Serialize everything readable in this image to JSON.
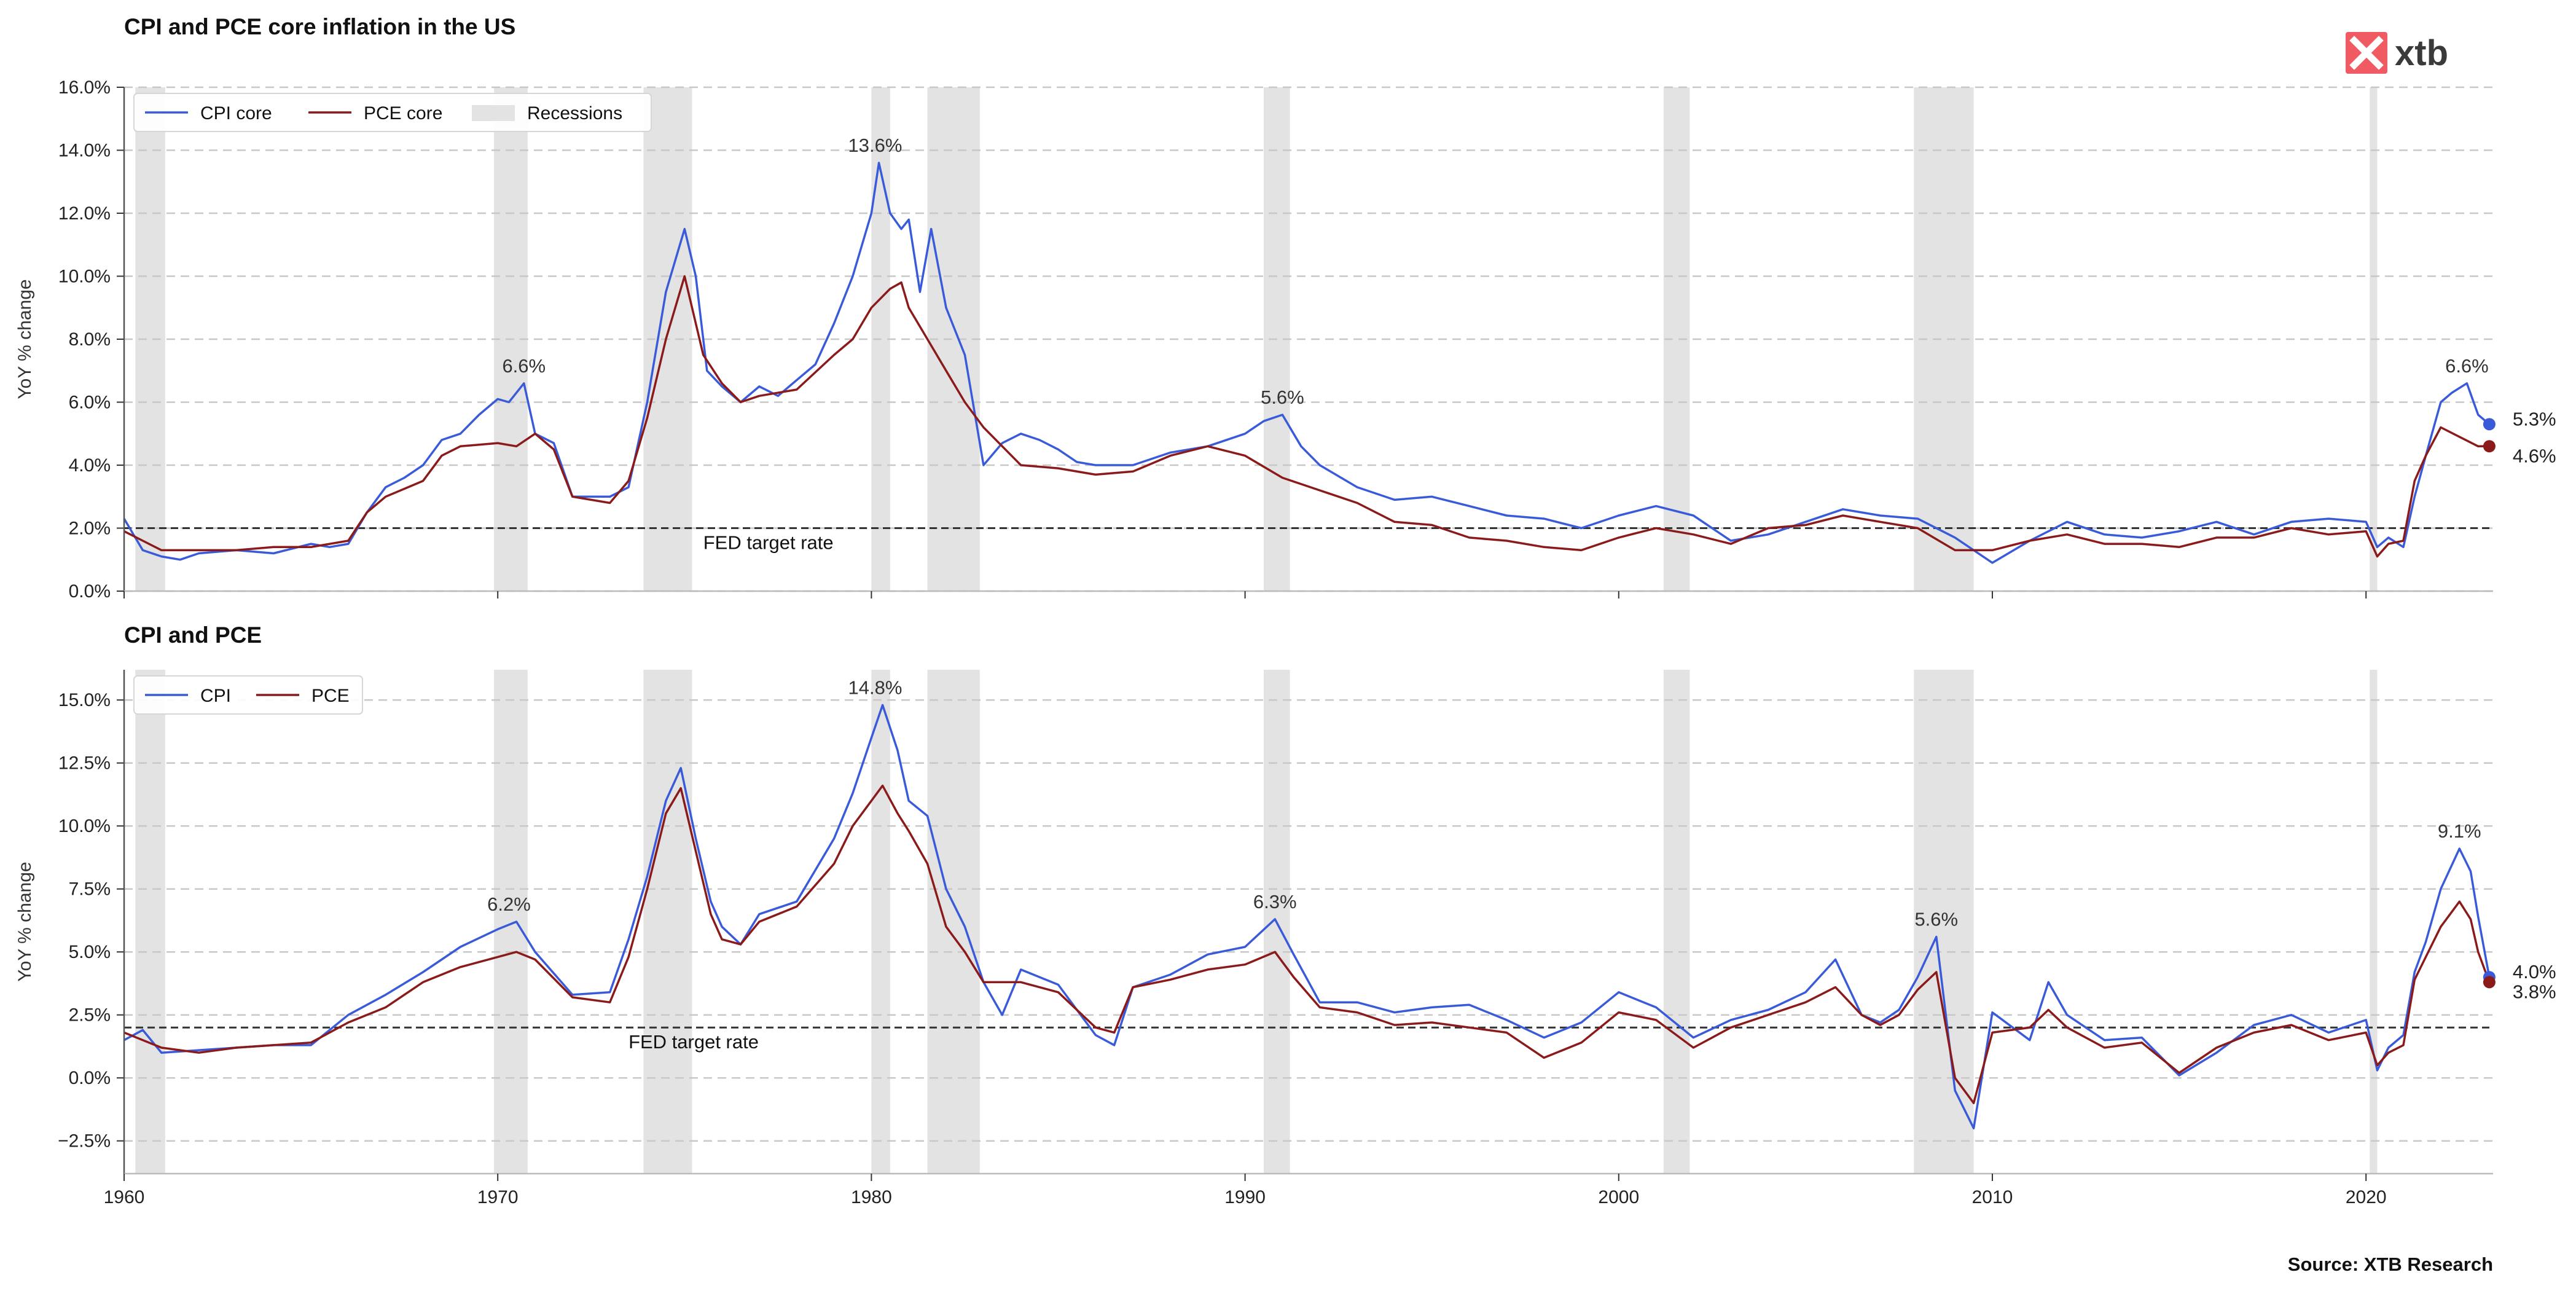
{
  "logo": {
    "text": "xtb",
    "color": "#f05a62"
  },
  "source": "Source: XTB Research",
  "colors": {
    "cpi": "#3a5bd9",
    "pce": "#8b1a1a",
    "recession": "#e3e3e3",
    "target": "#333333",
    "grid": "#c8c8c8"
  },
  "x_axis": {
    "min": 1960,
    "max": 2023.4,
    "ticks": [
      1960,
      1970,
      1980,
      1990,
      2000,
      2010,
      2020
    ]
  },
  "recessions": [
    [
      1960.3,
      1961.1
    ],
    [
      1969.9,
      1970.8
    ],
    [
      1973.9,
      1975.2
    ],
    [
      1980.0,
      1980.5
    ],
    [
      1981.5,
      1982.9
    ],
    [
      1990.5,
      1991.2
    ],
    [
      2001.2,
      2001.9
    ],
    [
      2007.9,
      2009.5
    ],
    [
      2020.1,
      2020.3
    ]
  ],
  "chart_data": [
    {
      "type": "line",
      "title": "CPI and PCE core inflation in the US",
      "ylabel": "YoY % change",
      "ylim": [
        0,
        16
      ],
      "y_ticks": [
        "0.0%",
        "2.0%",
        "4.0%",
        "6.0%",
        "8.0%",
        "10.0%",
        "12.0%",
        "14.0%",
        "16.0%"
      ],
      "y_tick_values": [
        0,
        2,
        4,
        6,
        8,
        10,
        12,
        14,
        16
      ],
      "grid": "horizontal dashed",
      "legend": {
        "position": "top-left",
        "items": [
          "CPI core",
          "PCE core",
          "Recessions"
        ]
      },
      "target": {
        "value": 2.0,
        "label": "FED target rate",
        "label_x": 1975.5
      },
      "annotations": [
        {
          "x": 1970.7,
          "y": 6.6,
          "text": "6.6%"
        },
        {
          "x": 1980.1,
          "y": 13.6,
          "text": "13.6%"
        },
        {
          "x": 1991.0,
          "y": 5.6,
          "text": "5.6%"
        },
        {
          "x": 2022.7,
          "y": 6.6,
          "text": "6.6%"
        }
      ],
      "end_labels": [
        {
          "series": "CPI core",
          "value": 5.3,
          "text": "5.3%"
        },
        {
          "series": "PCE core",
          "value": 4.6,
          "text": "4.6%"
        }
      ],
      "series": [
        {
          "name": "CPI core",
          "color": "#3a5bd9",
          "x": [
            1960.0,
            1960.5,
            1961.0,
            1961.5,
            1962.0,
            1963.0,
            1964.0,
            1965.0,
            1965.5,
            1966.0,
            1966.5,
            1967.0,
            1967.5,
            1968.0,
            1968.5,
            1969.0,
            1969.5,
            1970.0,
            1970.3,
            1970.7,
            1971.0,
            1971.5,
            1972.0,
            1972.5,
            1973.0,
            1973.5,
            1974.0,
            1974.5,
            1975.0,
            1975.3,
            1975.6,
            1976.0,
            1976.5,
            1977.0,
            1977.5,
            1978.0,
            1978.5,
            1979.0,
            1979.5,
            1980.0,
            1980.2,
            1980.5,
            1980.8,
            1981.0,
            1981.3,
            1981.6,
            1982.0,
            1982.5,
            1983.0,
            1983.5,
            1984.0,
            1984.5,
            1985.0,
            1985.5,
            1986.0,
            1987.0,
            1988.0,
            1989.0,
            1990.0,
            1990.5,
            1991.0,
            1991.5,
            1992.0,
            1993.0,
            1994.0,
            1995.0,
            1996.0,
            1997.0,
            1998.0,
            1999.0,
            2000.0,
            2001.0,
            2002.0,
            2003.0,
            2004.0,
            2005.0,
            2006.0,
            2007.0,
            2008.0,
            2009.0,
            2010.0,
            2011.0,
            2012.0,
            2013.0,
            2014.0,
            2015.0,
            2016.0,
            2017.0,
            2018.0,
            2019.0,
            2020.0,
            2020.3,
            2020.6,
            2021.0,
            2021.3,
            2021.6,
            2022.0,
            2022.3,
            2022.7,
            2023.0,
            2023.3
          ],
          "values": [
            2.3,
            1.3,
            1.1,
            1.0,
            1.2,
            1.3,
            1.2,
            1.5,
            1.4,
            1.5,
            2.5,
            3.3,
            3.6,
            4.0,
            4.8,
            5.0,
            5.6,
            6.1,
            6.0,
            6.6,
            5.0,
            4.7,
            3.0,
            3.0,
            3.0,
            3.3,
            6.0,
            9.5,
            11.5,
            10.0,
            7.0,
            6.5,
            6.0,
            6.5,
            6.2,
            6.7,
            7.2,
            8.5,
            10.0,
            12.0,
            13.6,
            12.0,
            11.5,
            11.8,
            9.5,
            11.5,
            9.0,
            7.5,
            4.0,
            4.7,
            5.0,
            4.8,
            4.5,
            4.1,
            4.0,
            4.0,
            4.4,
            4.6,
            5.0,
            5.4,
            5.6,
            4.6,
            4.0,
            3.3,
            2.9,
            3.0,
            2.7,
            2.4,
            2.3,
            2.0,
            2.4,
            2.7,
            2.4,
            1.6,
            1.8,
            2.2,
            2.6,
            2.4,
            2.3,
            1.7,
            0.9,
            1.6,
            2.2,
            1.8,
            1.7,
            1.9,
            2.2,
            1.8,
            2.2,
            2.3,
            2.2,
            1.4,
            1.7,
            1.4,
            3.0,
            4.3,
            6.0,
            6.3,
            6.6,
            5.6,
            5.3
          ]
        },
        {
          "name": "PCE core",
          "color": "#8b1a1a",
          "x": [
            1960.0,
            1960.5,
            1961.0,
            1962.0,
            1963.0,
            1964.0,
            1965.0,
            1966.0,
            1966.5,
            1967.0,
            1968.0,
            1968.5,
            1969.0,
            1970.0,
            1970.5,
            1971.0,
            1971.5,
            1972.0,
            1972.5,
            1973.0,
            1973.5,
            1974.0,
            1974.5,
            1975.0,
            1975.5,
            1976.0,
            1976.5,
            1977.0,
            1978.0,
            1979.0,
            1979.5,
            1980.0,
            1980.5,
            1980.8,
            1981.0,
            1981.5,
            1982.0,
            1982.5,
            1983.0,
            1984.0,
            1985.0,
            1986.0,
            1987.0,
            1988.0,
            1989.0,
            1990.0,
            1991.0,
            1992.0,
            1993.0,
            1994.0,
            1995.0,
            1996.0,
            1997.0,
            1998.0,
            1999.0,
            2000.0,
            2001.0,
            2002.0,
            2003.0,
            2004.0,
            2005.0,
            2006.0,
            2007.0,
            2008.0,
            2009.0,
            2010.0,
            2011.0,
            2012.0,
            2013.0,
            2014.0,
            2015.0,
            2016.0,
            2017.0,
            2018.0,
            2019.0,
            2020.0,
            2020.3,
            2020.6,
            2021.0,
            2021.3,
            2021.6,
            2022.0,
            2022.5,
            2023.0,
            2023.3
          ],
          "values": [
            1.9,
            1.6,
            1.3,
            1.3,
            1.3,
            1.4,
            1.4,
            1.6,
            2.5,
            3.0,
            3.5,
            4.3,
            4.6,
            4.7,
            4.6,
            5.0,
            4.5,
            3.0,
            2.9,
            2.8,
            3.5,
            5.5,
            8.0,
            10.0,
            7.5,
            6.6,
            6.0,
            6.2,
            6.4,
            7.5,
            8.0,
            9.0,
            9.6,
            9.8,
            9.0,
            8.0,
            7.0,
            6.0,
            5.2,
            4.0,
            3.9,
            3.7,
            3.8,
            4.3,
            4.6,
            4.3,
            3.6,
            3.2,
            2.8,
            2.2,
            2.1,
            1.7,
            1.6,
            1.4,
            1.3,
            1.7,
            2.0,
            1.8,
            1.5,
            2.0,
            2.1,
            2.4,
            2.2,
            2.0,
            1.3,
            1.3,
            1.6,
            1.8,
            1.5,
            1.5,
            1.4,
            1.7,
            1.7,
            2.0,
            1.8,
            1.9,
            1.1,
            1.5,
            1.6,
            3.5,
            4.3,
            5.2,
            4.9,
            4.6,
            4.6
          ]
        }
      ]
    },
    {
      "type": "line",
      "title": "CPI and PCE",
      "ylabel": "YoY % change",
      "ylim": [
        -3.8,
        16.2
      ],
      "y_ticks": [
        "−2.5%",
        "0.0%",
        "2.5%",
        "5.0%",
        "7.5%",
        "10.0%",
        "12.5%",
        "15.0%"
      ],
      "y_tick_values": [
        -2.5,
        0,
        2.5,
        5,
        7.5,
        10,
        12.5,
        15
      ],
      "grid": "horizontal dashed",
      "legend": {
        "position": "top-left",
        "items": [
          "CPI",
          "PCE"
        ]
      },
      "target": {
        "value": 2.0,
        "label": "FED target rate",
        "label_x": 1973.5
      },
      "annotations": [
        {
          "x": 1970.3,
          "y": 6.2,
          "text": "6.2%"
        },
        {
          "x": 1980.1,
          "y": 14.8,
          "text": "14.8%"
        },
        {
          "x": 1990.8,
          "y": 6.3,
          "text": "6.3%"
        },
        {
          "x": 2008.5,
          "y": 5.6,
          "text": "5.6%"
        },
        {
          "x": 2022.5,
          "y": 9.1,
          "text": "9.1%"
        }
      ],
      "end_labels": [
        {
          "series": "CPI",
          "value": 4.0,
          "text": "4.0%"
        },
        {
          "series": "PCE",
          "value": 3.8,
          "text": "3.8%"
        }
      ],
      "series": [
        {
          "name": "CPI",
          "color": "#3a5bd9",
          "x": [
            1960.0,
            1960.5,
            1961.0,
            1962.0,
            1963.0,
            1964.0,
            1965.0,
            1966.0,
            1967.0,
            1968.0,
            1969.0,
            1970.0,
            1970.5,
            1971.0,
            1972.0,
            1973.0,
            1973.5,
            1974.0,
            1974.5,
            1974.9,
            1975.3,
            1975.7,
            1976.0,
            1976.5,
            1977.0,
            1978.0,
            1979.0,
            1979.5,
            1980.0,
            1980.3,
            1980.7,
            1981.0,
            1981.5,
            1982.0,
            1982.5,
            1983.0,
            1983.5,
            1984.0,
            1985.0,
            1986.0,
            1986.5,
            1987.0,
            1988.0,
            1989.0,
            1990.0,
            1990.8,
            1991.3,
            1992.0,
            1993.0,
            1994.0,
            1995.0,
            1996.0,
            1997.0,
            1998.0,
            1999.0,
            2000.0,
            2001.0,
            2002.0,
            2003.0,
            2004.0,
            2005.0,
            2005.8,
            2006.5,
            2007.0,
            2007.5,
            2008.0,
            2008.5,
            2009.0,
            2009.5,
            2010.0,
            2011.0,
            2011.5,
            2012.0,
            2013.0,
            2014.0,
            2015.0,
            2016.0,
            2017.0,
            2018.0,
            2019.0,
            2020.0,
            2020.3,
            2020.6,
            2021.0,
            2021.3,
            2021.6,
            2022.0,
            2022.5,
            2022.8,
            2023.0,
            2023.3
          ],
          "values": [
            1.5,
            1.9,
            1.0,
            1.1,
            1.2,
            1.3,
            1.3,
            2.5,
            3.3,
            4.2,
            5.2,
            5.9,
            6.2,
            5.0,
            3.3,
            3.4,
            5.5,
            8.0,
            11.0,
            12.3,
            9.5,
            7.0,
            6.0,
            5.3,
            6.5,
            7.0,
            9.5,
            11.3,
            13.5,
            14.8,
            13.0,
            11.0,
            10.4,
            7.5,
            6.0,
            3.8,
            2.5,
            4.3,
            3.7,
            1.7,
            1.3,
            3.6,
            4.1,
            4.9,
            5.2,
            6.3,
            4.9,
            3.0,
            3.0,
            2.6,
            2.8,
            2.9,
            2.3,
            1.6,
            2.2,
            3.4,
            2.8,
            1.6,
            2.3,
            2.7,
            3.4,
            4.7,
            2.5,
            2.2,
            2.7,
            4.0,
            5.6,
            -0.5,
            -2.0,
            2.6,
            1.5,
            3.8,
            2.5,
            1.5,
            1.6,
            0.1,
            1.0,
            2.1,
            2.5,
            1.8,
            2.3,
            0.3,
            1.2,
            1.7,
            4.2,
            5.4,
            7.5,
            9.1,
            8.2,
            6.4,
            4.0
          ]
        },
        {
          "name": "PCE",
          "color": "#8b1a1a",
          "x": [
            1960.0,
            1961.0,
            1962.0,
            1963.0,
            1964.0,
            1965.0,
            1966.0,
            1967.0,
            1968.0,
            1969.0,
            1970.0,
            1970.5,
            1971.0,
            1972.0,
            1973.0,
            1973.5,
            1974.0,
            1974.5,
            1974.9,
            1975.3,
            1975.7,
            1976.0,
            1976.5,
            1977.0,
            1978.0,
            1979.0,
            1979.5,
            1980.0,
            1980.3,
            1980.7,
            1981.0,
            1981.5,
            1982.0,
            1982.5,
            1983.0,
            1984.0,
            1985.0,
            1986.0,
            1986.5,
            1987.0,
            1988.0,
            1989.0,
            1990.0,
            1990.8,
            1991.3,
            1992.0,
            1993.0,
            1994.0,
            1995.0,
            1996.0,
            1997.0,
            1998.0,
            1999.0,
            2000.0,
            2001.0,
            2002.0,
            2003.0,
            2004.0,
            2005.0,
            2005.8,
            2006.5,
            2007.0,
            2007.5,
            2008.0,
            2008.5,
            2009.0,
            2009.5,
            2010.0,
            2011.0,
            2011.5,
            2012.0,
            2013.0,
            2014.0,
            2015.0,
            2016.0,
            2017.0,
            2018.0,
            2019.0,
            2020.0,
            2020.3,
            2020.6,
            2021.0,
            2021.3,
            2021.6,
            2022.0,
            2022.5,
            2022.8,
            2023.0,
            2023.3
          ],
          "values": [
            1.8,
            1.2,
            1.0,
            1.2,
            1.3,
            1.4,
            2.2,
            2.8,
            3.8,
            4.4,
            4.8,
            5.0,
            4.7,
            3.2,
            3.0,
            4.8,
            7.5,
            10.5,
            11.5,
            9.0,
            6.5,
            5.5,
            5.3,
            6.2,
            6.8,
            8.5,
            10.0,
            11.0,
            11.6,
            10.5,
            9.8,
            8.5,
            6.0,
            5.0,
            3.8,
            3.8,
            3.4,
            2.0,
            1.8,
            3.6,
            3.9,
            4.3,
            4.5,
            5.0,
            4.0,
            2.8,
            2.6,
            2.1,
            2.2,
            2.0,
            1.8,
            0.8,
            1.4,
            2.6,
            2.3,
            1.2,
            2.0,
            2.5,
            3.0,
            3.6,
            2.5,
            2.1,
            2.5,
            3.5,
            4.2,
            0.0,
            -1.0,
            1.8,
            2.0,
            2.7,
            2.0,
            1.2,
            1.4,
            0.2,
            1.2,
            1.8,
            2.1,
            1.5,
            1.8,
            0.5,
            1.0,
            1.3,
            3.9,
            4.8,
            6.0,
            7.0,
            6.3,
            5.0,
            3.8
          ]
        }
      ]
    }
  ]
}
